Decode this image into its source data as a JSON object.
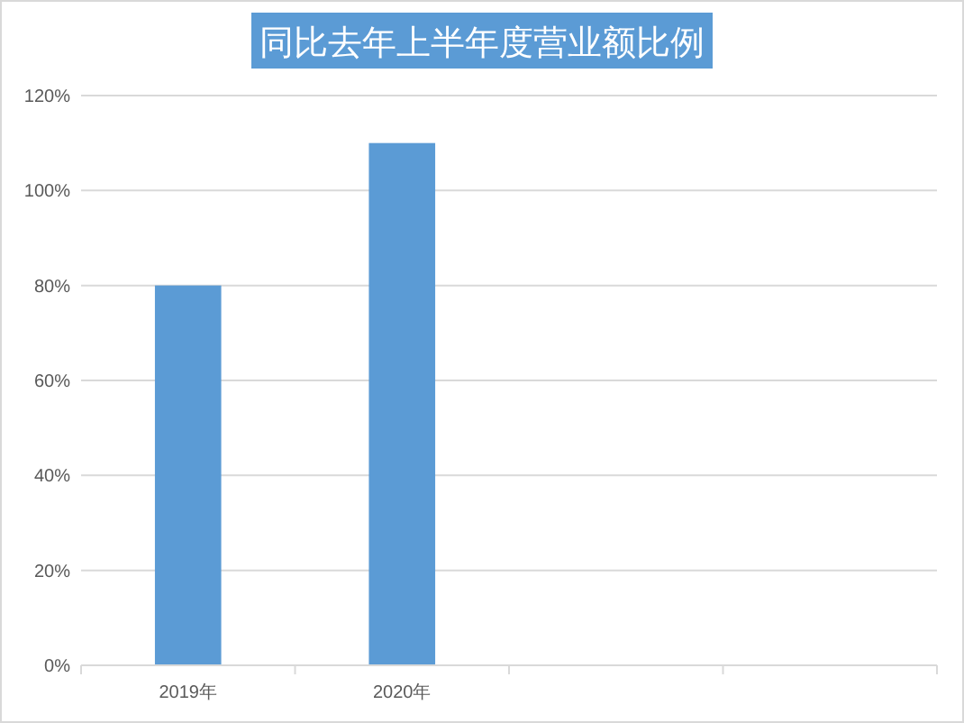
{
  "chart_data": {
    "type": "bar",
    "title": "同比去年上半年度营业额比例",
    "categories": [
      "2019年",
      "2020年",
      null,
      null
    ],
    "values": [
      80,
      110,
      null,
      null
    ],
    "color": "#5b9bd5",
    "ylim": [
      0,
      120
    ],
    "yticks": [
      {
        "value": 0,
        "label": "0%"
      },
      {
        "value": 20,
        "label": "20%"
      },
      {
        "value": 40,
        "label": "40%"
      },
      {
        "value": 60,
        "label": "60%"
      },
      {
        "value": 80,
        "label": "80%"
      },
      {
        "value": 100,
        "label": "100%"
      },
      {
        "value": 120,
        "label": "120%"
      }
    ],
    "grid": "y"
  }
}
